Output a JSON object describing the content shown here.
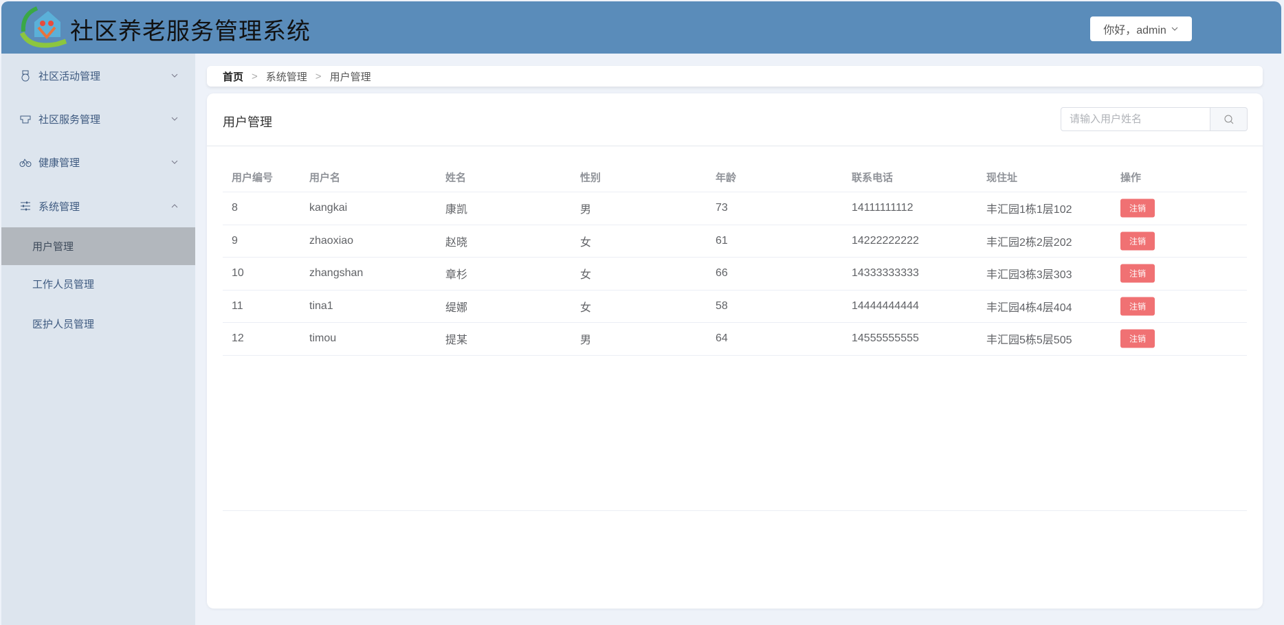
{
  "header": {
    "title": "社区养老服务管理系统",
    "user_label": "你好，admin",
    "brand_color": "#5a8cba"
  },
  "sidebar": {
    "menus": [
      {
        "label": "社区活动管理",
        "icon": "medal-icon",
        "expanded": false
      },
      {
        "label": "社区服务管理",
        "icon": "service-icon",
        "expanded": false
      },
      {
        "label": "健康管理",
        "icon": "bicycle-icon",
        "expanded": false
      },
      {
        "label": "系统管理",
        "icon": "sliders-icon",
        "expanded": true
      }
    ],
    "sub_items": [
      {
        "label": "用户管理",
        "active": true
      },
      {
        "label": "工作人员管理",
        "active": false
      },
      {
        "label": "医护人员管理",
        "active": false
      }
    ]
  },
  "breadcrumb": {
    "items": [
      "首页",
      "系统管理",
      "用户管理"
    ]
  },
  "main": {
    "title": "用户管理",
    "search_placeholder": "请输入用户姓名",
    "columns": [
      "用户编号",
      "用户名",
      "姓名",
      "性别",
      "年龄",
      "联系电话",
      "现住址",
      "操作"
    ],
    "rows": [
      [
        "8",
        "kangkai",
        "康凯",
        "男",
        "73",
        "14111111112",
        "丰汇园1栋1层102"
      ],
      [
        "9",
        "zhaoxiao",
        "赵晓",
        "女",
        "61",
        "14222222222",
        "丰汇园2栋2层202"
      ],
      [
        "10",
        "zhangshan",
        "章杉",
        "女",
        "66",
        "14333333333",
        "丰汇园3栋3层303"
      ],
      [
        "11",
        "tina1",
        "缇娜",
        "女",
        "58",
        "14444444444",
        "丰汇园4栋4层404"
      ],
      [
        "12",
        "timou",
        "提某",
        "男",
        "64",
        "14555555555",
        "丰汇园5栋5层505"
      ]
    ],
    "action_label": "注销",
    "action_color": "#f07173"
  }
}
